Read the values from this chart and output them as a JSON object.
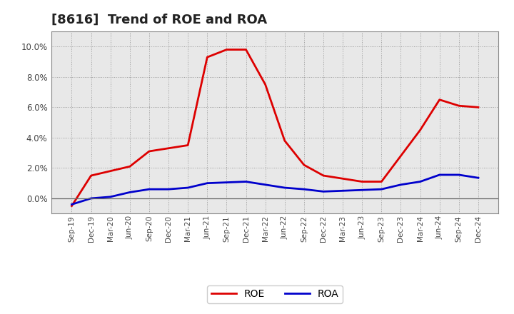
{
  "title": "[8616]  Trend of ROE and ROA",
  "xlabels": [
    "Sep-19",
    "Dec-19",
    "Mar-20",
    "Jun-20",
    "Sep-20",
    "Dec-20",
    "Mar-21",
    "Jun-21",
    "Sep-21",
    "Dec-21",
    "Mar-22",
    "Jun-22",
    "Sep-22",
    "Dec-22",
    "Mar-23",
    "Jun-23",
    "Sep-23",
    "Dec-23",
    "Mar-24",
    "Jun-24",
    "Sep-24",
    "Dec-24"
  ],
  "roe": [
    -0.5,
    1.5,
    1.8,
    2.1,
    3.1,
    3.3,
    3.5,
    9.3,
    9.8,
    9.8,
    7.5,
    3.8,
    2.2,
    1.5,
    1.3,
    1.1,
    1.1,
    2.8,
    4.5,
    6.5,
    6.1,
    6.0
  ],
  "roa": [
    -0.4,
    0.0,
    0.1,
    0.4,
    0.6,
    0.6,
    0.7,
    1.0,
    1.05,
    1.1,
    0.9,
    0.7,
    0.6,
    0.45,
    0.5,
    0.55,
    0.6,
    0.9,
    1.1,
    1.55,
    1.55,
    1.35
  ],
  "roe_color": "#dd0000",
  "roa_color": "#0000cc",
  "ylim": [
    -1.0,
    11.0
  ],
  "yticks": [
    0.0,
    2.0,
    4.0,
    6.0,
    8.0,
    10.0
  ],
  "plot_bg_color": "#e8e8e8",
  "outer_bg_color": "#ffffff",
  "grid_color": "#888888",
  "spine_color": "#888888",
  "title_fontsize": 13,
  "line_width": 2.0,
  "legend_fontsize": 10
}
